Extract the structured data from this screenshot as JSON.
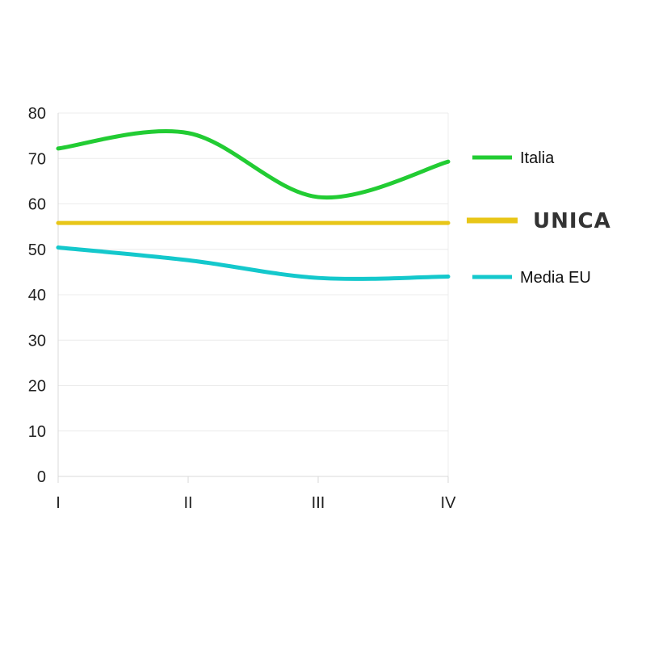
{
  "chart_data": {
    "type": "line",
    "categories": [
      "I",
      "II",
      "III",
      "IV"
    ],
    "y_ticks": [
      0,
      10,
      20,
      30,
      40,
      50,
      60,
      70,
      80
    ],
    "ylim": [
      0,
      80
    ],
    "grid": true,
    "smooth": true,
    "legend_position": "right",
    "series": [
      {
        "name": "Italia",
        "values": [
          72.2,
          75.6,
          61.5,
          69.3
        ],
        "color": "#22cc33",
        "legend_style": "normal"
      },
      {
        "name": "UNICA",
        "values": [
          55.8,
          55.8,
          55.8,
          55.8
        ],
        "color": "#e8c618",
        "legend_style": "bold"
      },
      {
        "name": "Media EU",
        "values": [
          50.4,
          47.6,
          43.7,
          44.0
        ],
        "color": "#14c8cc",
        "legend_style": "normal"
      }
    ]
  }
}
